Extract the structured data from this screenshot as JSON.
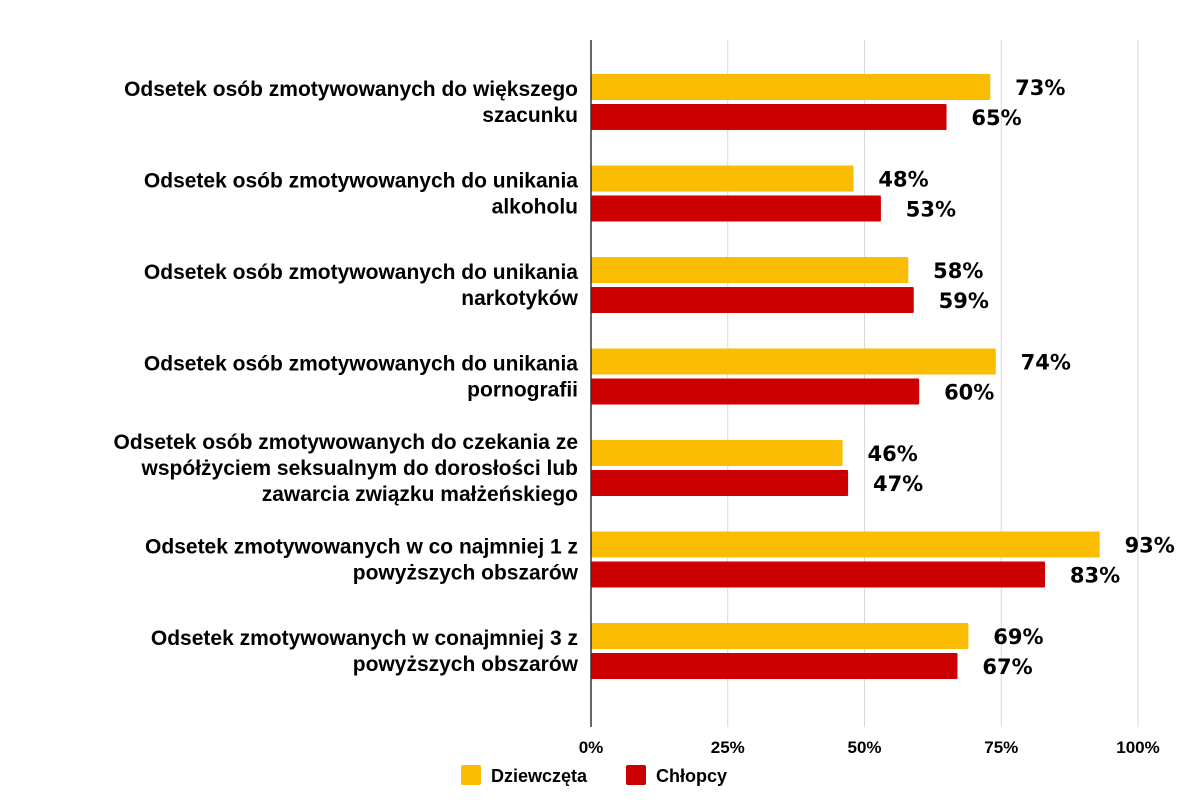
{
  "chart_data": {
    "type": "bar",
    "orientation": "horizontal",
    "categories": [
      [
        "Odsetek osób zmotywowanych do większego",
        "szacunku"
      ],
      [
        "Odsetek osób zmotywowanych do unikania",
        "alkoholu"
      ],
      [
        "Odsetek osób zmotywowanych do unikania",
        "narkotyków"
      ],
      [
        "Odsetek osób zmotywowanych do unikania",
        "pornografii"
      ],
      [
        "Odsetek osób zmotywowanych do czekania ze",
        "współżyciem seksualnym do dorosłości lub",
        "zawarcia związku małżeńskiego"
      ],
      [
        "Odsetek zmotywowanych w co najmniej 1 z",
        "powyższych obszarów"
      ],
      [
        "Odsetek zmotywowanych w conajmniej 3 z",
        "powyższych obszarów"
      ]
    ],
    "series": [
      {
        "name": "Dziewczęta",
        "color": "#FBBC04",
        "values": [
          73,
          48,
          58,
          74,
          46,
          93,
          69
        ],
        "labels": [
          "73%",
          "48%",
          "58%",
          "74%",
          "46%",
          "93%",
          "69%"
        ]
      },
      {
        "name": "Chłopcy",
        "color": "#CC0000",
        "values": [
          65,
          53,
          59,
          60,
          47,
          83,
          67
        ],
        "labels": [
          "65%",
          "53%",
          "59%",
          "60%",
          "47%",
          "83%",
          "67%"
        ]
      }
    ],
    "xlim": [
      0,
      100
    ],
    "x_ticks": [
      0,
      25,
      50,
      75,
      100
    ],
    "x_tick_labels": [
      "0%",
      "25%",
      "50%",
      "75%",
      "100%"
    ],
    "grid": "vertical",
    "legend": "bottom"
  }
}
